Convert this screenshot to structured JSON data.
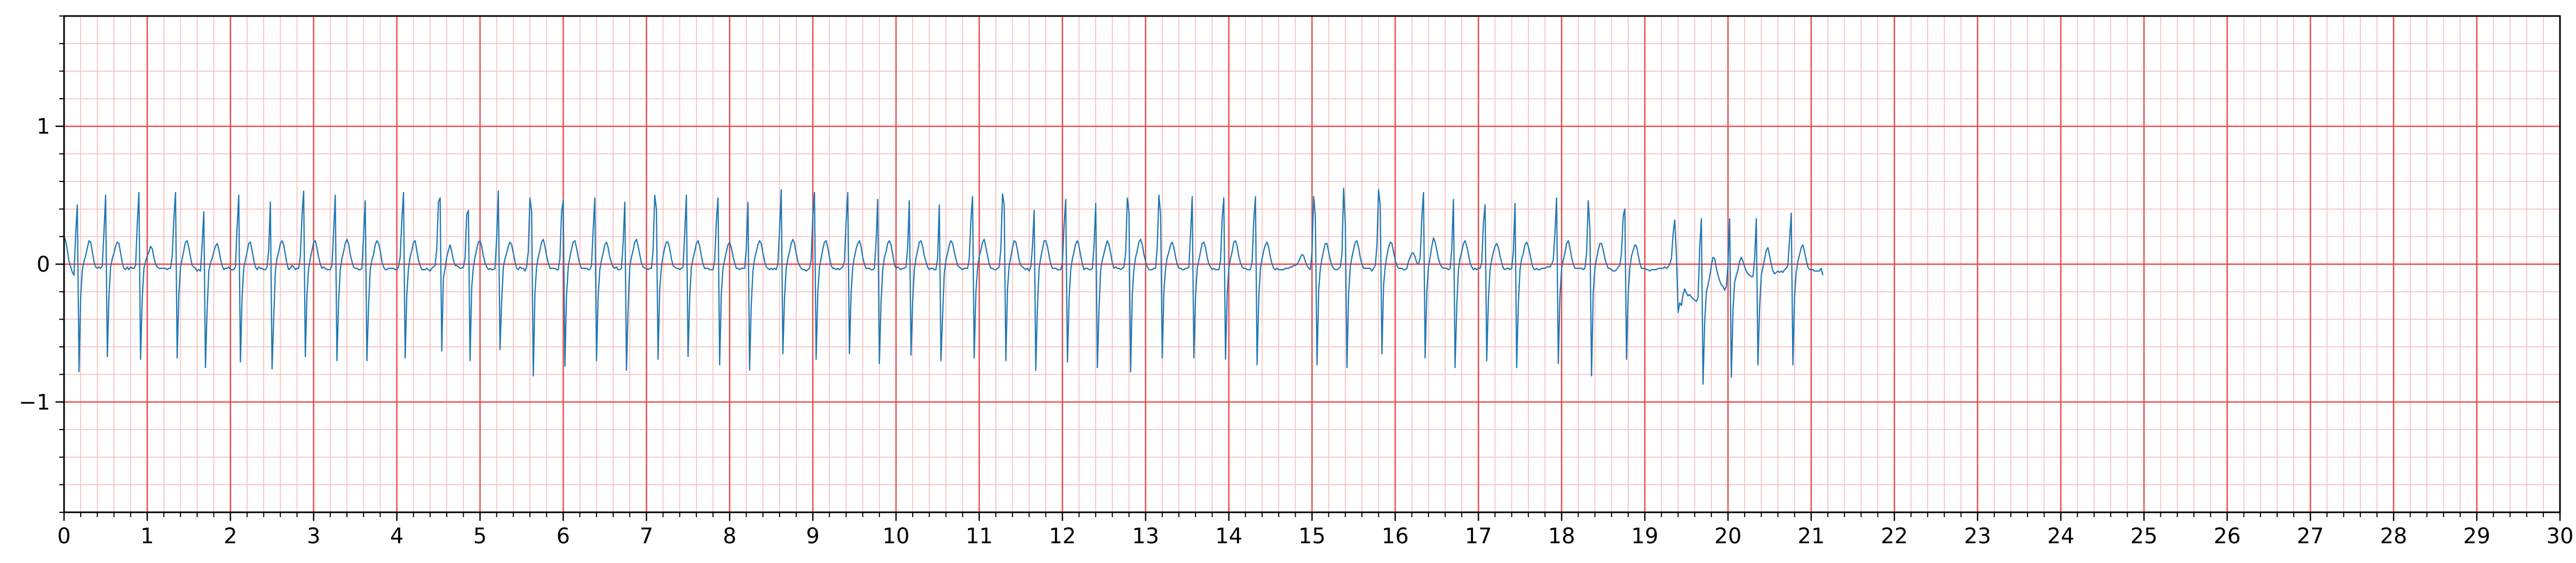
{
  "chart_data": {
    "type": "line",
    "title": "",
    "xlabel": "",
    "ylabel": "",
    "xlim": [
      0,
      30
    ],
    "ylim": [
      -1.8,
      1.8
    ],
    "x_ticks": [
      "0",
      "1",
      "2",
      "3",
      "4",
      "5",
      "6",
      "7",
      "8",
      "9",
      "10",
      "11",
      "12",
      "13",
      "14",
      "15",
      "16",
      "17",
      "18",
      "19",
      "20",
      "21",
      "22",
      "23",
      "24",
      "25",
      "26",
      "27",
      "28",
      "29",
      "30"
    ],
    "y_ticks": [
      {
        "value": 1,
        "label": "1"
      },
      {
        "value": 0,
        "label": "0"
      },
      {
        "value": -1,
        "label": "−1"
      }
    ],
    "grid": {
      "major": true,
      "minor": true,
      "x_major_step": 1,
      "x_minor_step": 0.2,
      "y_major_step": 1,
      "y_minor_step": 0.2
    },
    "colors": {
      "trace": "#1f77b4",
      "major_grid": "#ee4444",
      "minor_grid": "#f7bcbc",
      "axis": "#000000"
    },
    "series": [
      {
        "sampling": "uniform",
        "x_start": 0,
        "x_step": 0.02,
        "values": [
          0.2,
          0.17,
          0.1,
          0.02,
          -0.02,
          -0.06,
          -0.08,
          0.22,
          0.43,
          -0.78,
          -0.23,
          -0.04,
          0.02,
          0.06,
          0.12,
          0.17,
          0.16,
          0.09,
          0.02,
          -0.02,
          -0.03,
          -0.02,
          -0.03,
          -0.01,
          0.23,
          0.5,
          -0.67,
          -0.23,
          -0.02,
          0.04,
          0.08,
          0.13,
          0.16,
          0.15,
          0.08,
          0.01,
          -0.03,
          -0.04,
          -0.02,
          -0.04,
          -0.02,
          -0.03,
          -0.03,
          -0.01,
          0.29,
          0.52,
          -0.69,
          -0.25,
          -0.03,
          0.02,
          0.06,
          0.09,
          0.13,
          0.11,
          0.05,
          0.0,
          -0.02,
          -0.03,
          -0.03,
          -0.03,
          -0.03,
          -0.03,
          -0.04,
          -0.03,
          -0.03,
          0.06,
          0.33,
          0.52,
          -0.68,
          -0.22,
          -0.02,
          0.04,
          0.1,
          0.16,
          0.17,
          0.12,
          0.05,
          -0.01,
          -0.02,
          -0.03,
          -0.05,
          -0.04,
          -0.05,
          0.14,
          0.38,
          -0.75,
          -0.33,
          -0.05,
          0.01,
          0.04,
          0.09,
          0.13,
          0.15,
          0.11,
          0.04,
          -0.01,
          -0.04,
          -0.03,
          -0.03,
          -0.02,
          -0.04,
          -0.04,
          -0.04,
          -0.02,
          0.27,
          0.5,
          -0.71,
          -0.24,
          -0.03,
          0.03,
          0.09,
          0.15,
          0.16,
          0.1,
          0.03,
          -0.02,
          -0.04,
          -0.02,
          -0.03,
          -0.03,
          -0.04,
          -0.04,
          -0.02,
          0.1,
          0.45,
          -0.76,
          -0.39,
          -0.05,
          0.04,
          0.09,
          0.15,
          0.17,
          0.14,
          0.07,
          0.0,
          -0.04,
          -0.03,
          -0.01,
          -0.02,
          -0.04,
          -0.03,
          -0.03,
          0.05,
          0.35,
          0.53,
          -0.67,
          -0.22,
          -0.03,
          0.04,
          0.1,
          0.16,
          0.17,
          0.12,
          0.05,
          0.0,
          -0.03,
          -0.02,
          -0.03,
          -0.04,
          -0.04,
          -0.04,
          -0.01,
          0.23,
          0.5,
          -0.7,
          -0.27,
          -0.04,
          0.04,
          0.09,
          0.15,
          0.18,
          0.15,
          0.07,
          0.02,
          -0.02,
          -0.03,
          -0.03,
          -0.04,
          -0.04,
          -0.03,
          0.2,
          0.46,
          -0.7,
          -0.31,
          -0.04,
          0.03,
          0.07,
          0.14,
          0.17,
          0.15,
          0.1,
          0.02,
          -0.02,
          -0.04,
          -0.04,
          -0.03,
          -0.03,
          -0.03,
          -0.03,
          -0.04,
          -0.04,
          -0.02,
          0.05,
          0.32,
          0.52,
          -0.68,
          -0.22,
          -0.03,
          0.05,
          0.1,
          0.16,
          0.17,
          0.1,
          0.03,
          -0.01,
          -0.04,
          -0.04,
          -0.04,
          -0.03,
          -0.04,
          -0.05,
          -0.03,
          -0.02,
          -0.01,
          0.11,
          0.45,
          0.48,
          -0.63,
          -0.1,
          -0.03,
          0.05,
          0.1,
          0.14,
          0.09,
          0.03,
          -0.01,
          -0.01,
          -0.02,
          -0.03,
          -0.03,
          -0.02,
          0.04,
          0.36,
          0.39,
          -0.7,
          -0.17,
          -0.02,
          0.05,
          0.11,
          0.16,
          0.17,
          0.13,
          0.06,
          0.01,
          -0.02,
          -0.04,
          -0.03,
          -0.04,
          -0.04,
          -0.03,
          0.19,
          0.53,
          -0.62,
          -0.27,
          -0.02,
          0.04,
          0.08,
          0.13,
          0.16,
          0.14,
          0.08,
          0.02,
          -0.03,
          -0.04,
          -0.02,
          -0.03,
          -0.03,
          -0.05,
          -0.02,
          0.09,
          0.48,
          0.38,
          -0.81,
          -0.21,
          -0.02,
          0.05,
          0.1,
          0.16,
          0.18,
          0.13,
          0.06,
          0.01,
          -0.03,
          -0.03,
          -0.03,
          -0.03,
          -0.04,
          -0.04,
          0.04,
          0.38,
          0.46,
          -0.74,
          -0.23,
          -0.02,
          0.05,
          0.11,
          0.16,
          0.17,
          0.12,
          0.05,
          0.0,
          -0.03,
          -0.03,
          -0.03,
          -0.03,
          -0.04,
          -0.04,
          -0.01,
          0.25,
          0.48,
          -0.7,
          -0.23,
          -0.04,
          0.03,
          0.08,
          0.14,
          0.16,
          0.12,
          0.05,
          0.01,
          -0.02,
          -0.03,
          -0.02,
          -0.04,
          -0.04,
          -0.03,
          0.15,
          0.45,
          -0.77,
          -0.31,
          -0.02,
          0.05,
          0.1,
          0.16,
          0.18,
          0.13,
          0.07,
          0.01,
          -0.02,
          -0.03,
          -0.03,
          -0.04,
          -0.03,
          -0.03,
          0.1,
          0.5,
          0.4,
          -0.69,
          -0.18,
          -0.02,
          0.06,
          0.12,
          0.16,
          0.16,
          0.11,
          0.04,
          -0.01,
          -0.02,
          -0.03,
          -0.03,
          -0.04,
          -0.03,
          -0.02,
          0.22,
          0.5,
          -0.67,
          -0.24,
          -0.02,
          0.04,
          0.09,
          0.15,
          0.17,
          0.13,
          0.06,
          0.0,
          -0.03,
          -0.03,
          -0.03,
          -0.04,
          -0.04,
          -0.04,
          0.02,
          0.31,
          0.48,
          -0.73,
          -0.22,
          -0.03,
          0.03,
          0.09,
          0.14,
          0.16,
          0.12,
          0.06,
          0.01,
          -0.03,
          -0.03,
          -0.04,
          -0.03,
          -0.03,
          -0.03,
          0.11,
          0.45,
          -0.77,
          -0.3,
          -0.05,
          0.04,
          0.09,
          0.14,
          0.17,
          0.15,
          0.08,
          0.02,
          -0.02,
          -0.03,
          -0.04,
          -0.03,
          -0.04,
          -0.03,
          -0.04,
          0.0,
          0.24,
          0.54,
          -0.65,
          -0.24,
          -0.03,
          0.04,
          0.09,
          0.15,
          0.18,
          0.15,
          0.08,
          0.02,
          -0.01,
          -0.03,
          -0.04,
          -0.04,
          -0.05,
          -0.04,
          -0.03,
          0.03,
          0.35,
          0.52,
          -0.69,
          -0.2,
          -0.02,
          0.04,
          0.11,
          0.16,
          0.17,
          0.12,
          0.05,
          -0.01,
          -0.03,
          -0.03,
          -0.04,
          -0.03,
          -0.04,
          -0.03,
          -0.02,
          0.02,
          0.31,
          0.52,
          -0.65,
          -0.21,
          -0.02,
          0.05,
          0.11,
          0.15,
          0.17,
          0.13,
          0.05,
          0.0,
          -0.03,
          -0.03,
          -0.03,
          -0.04,
          -0.04,
          -0.03,
          0.16,
          0.47,
          -0.72,
          -0.28,
          -0.04,
          0.05,
          0.09,
          0.15,
          0.17,
          0.14,
          0.07,
          0.0,
          -0.03,
          -0.02,
          -0.03,
          -0.04,
          -0.03,
          -0.03,
          -0.02,
          0.12,
          0.46,
          -0.66,
          -0.26,
          -0.04,
          0.04,
          0.1,
          0.16,
          0.17,
          0.13,
          0.06,
          0.02,
          -0.02,
          -0.04,
          -0.03,
          -0.03,
          -0.04,
          -0.04,
          0.04,
          0.43,
          -0.7,
          -0.37,
          -0.07,
          0.03,
          0.08,
          0.14,
          0.17,
          0.15,
          0.09,
          0.04,
          -0.01,
          -0.02,
          -0.03,
          -0.04,
          -0.03,
          -0.03,
          -0.03,
          0.04,
          0.32,
          0.49,
          -0.68,
          -0.2,
          -0.03,
          0.06,
          0.1,
          0.16,
          0.18,
          0.12,
          0.06,
          0.0,
          -0.03,
          -0.03,
          -0.04,
          -0.04,
          -0.03,
          -0.02,
          0.11,
          0.51,
          0.43,
          -0.7,
          -0.18,
          -0.01,
          0.05,
          0.12,
          0.17,
          0.16,
          0.1,
          0.03,
          -0.01,
          -0.02,
          -0.03,
          -0.04,
          -0.03,
          -0.05,
          -0.02,
          0.13,
          0.39,
          -0.77,
          -0.31,
          -0.03,
          0.05,
          0.11,
          0.17,
          0.17,
          0.13,
          0.06,
          0.0,
          -0.03,
          -0.03,
          -0.03,
          -0.04,
          -0.04,
          -0.04,
          0.01,
          0.28,
          0.47,
          -0.71,
          -0.25,
          -0.04,
          0.04,
          0.09,
          0.15,
          0.17,
          0.13,
          0.06,
          0.0,
          -0.04,
          -0.03,
          -0.03,
          -0.04,
          -0.04,
          -0.03,
          0.13,
          0.44,
          -0.75,
          -0.32,
          -0.04,
          0.03,
          0.08,
          0.13,
          0.17,
          0.14,
          0.08,
          0.01,
          -0.03,
          -0.02,
          -0.03,
          -0.03,
          -0.04,
          -0.03,
          -0.02,
          0.08,
          0.48,
          0.38,
          -0.78,
          -0.21,
          -0.03,
          0.05,
          0.1,
          0.16,
          0.18,
          0.14,
          0.07,
          0.02,
          -0.02,
          -0.04,
          -0.04,
          -0.04,
          -0.03,
          -0.03,
          0.13,
          0.5,
          0.36,
          -0.68,
          -0.19,
          -0.03,
          0.05,
          0.09,
          0.14,
          0.16,
          0.12,
          0.05,
          0.0,
          -0.03,
          -0.03,
          -0.04,
          -0.04,
          -0.03,
          -0.03,
          -0.02,
          0.22,
          0.49,
          -0.68,
          -0.24,
          -0.03,
          0.03,
          0.09,
          0.15,
          0.16,
          0.12,
          0.05,
          0.0,
          -0.02,
          -0.04,
          -0.03,
          -0.04,
          -0.04,
          -0.04,
          0.02,
          0.33,
          0.48,
          -0.69,
          -0.22,
          -0.03,
          0.04,
          0.09,
          0.16,
          0.17,
          0.13,
          0.06,
          0.01,
          -0.02,
          -0.03,
          -0.03,
          -0.04,
          -0.04,
          -0.04,
          0.02,
          0.32,
          0.49,
          -0.73,
          -0.24,
          -0.03,
          0.04,
          0.1,
          0.14,
          0.16,
          0.12,
          0.05,
          0.0,
          -0.03,
          -0.04,
          -0.03,
          -0.04,
          -0.04,
          -0.04,
          -0.04,
          -0.03,
          -0.03,
          -0.03,
          -0.02,
          -0.02,
          -0.01,
          -0.01,
          0.0,
          0.02,
          0.05,
          0.07,
          0.06,
          0.02,
          -0.01,
          -0.03,
          -0.04,
          0.09,
          0.49,
          0.35,
          -0.73,
          -0.19,
          -0.03,
          0.04,
          0.1,
          0.15,
          0.15,
          0.09,
          0.03,
          -0.01,
          -0.03,
          -0.04,
          -0.04,
          -0.03,
          -0.02,
          0.07,
          0.55,
          0.29,
          -0.75,
          -0.21,
          -0.02,
          0.05,
          0.11,
          0.16,
          0.17,
          0.12,
          0.05,
          0.0,
          -0.03,
          -0.03,
          -0.03,
          -0.03,
          -0.03,
          -0.05,
          -0.03,
          -0.01,
          0.13,
          0.54,
          0.43,
          -0.65,
          -0.15,
          -0.02,
          0.06,
          0.12,
          0.16,
          0.15,
          0.09,
          0.03,
          -0.01,
          -0.03,
          -0.03,
          -0.03,
          -0.04,
          -0.04,
          -0.03,
          0.02,
          0.05,
          0.08,
          0.08,
          0.05,
          0.01,
          0.0,
          0.05,
          0.34,
          0.52,
          -0.68,
          -0.2,
          -0.02,
          0.05,
          0.13,
          0.19,
          0.16,
          0.1,
          0.04,
          0.0,
          -0.02,
          -0.03,
          -0.03,
          -0.03,
          -0.04,
          -0.03,
          0.11,
          0.47,
          -0.75,
          -0.3,
          -0.04,
          0.04,
          0.09,
          0.15,
          0.17,
          0.13,
          0.07,
          0.01,
          -0.02,
          -0.04,
          -0.03,
          -0.04,
          -0.03,
          -0.03,
          0.01,
          0.3,
          0.43,
          -0.7,
          -0.26,
          -0.04,
          0.03,
          0.09,
          0.13,
          0.15,
          0.12,
          0.06,
          0.01,
          -0.03,
          -0.04,
          -0.03,
          -0.03,
          -0.04,
          -0.03,
          0.09,
          0.44,
          -0.75,
          -0.29,
          -0.04,
          0.04,
          0.08,
          0.14,
          0.16,
          0.13,
          0.07,
          0.01,
          -0.03,
          -0.04,
          -0.03,
          -0.04,
          -0.04,
          -0.03,
          -0.03,
          -0.03,
          -0.02,
          -0.02,
          -0.02,
          0.0,
          0.03,
          0.23,
          0.48,
          -0.72,
          -0.23,
          -0.03,
          0.03,
          0.08,
          0.15,
          0.17,
          0.12,
          0.05,
          0.0,
          -0.03,
          -0.03,
          -0.03,
          -0.03,
          -0.03,
          -0.04,
          -0.03,
          0.08,
          0.46,
          0.26,
          -0.81,
          -0.21,
          -0.03,
          0.04,
          0.1,
          0.15,
          0.15,
          0.1,
          0.04,
          0.0,
          -0.03,
          -0.03,
          -0.04,
          -0.05,
          -0.05,
          -0.04,
          -0.02,
          -0.01,
          0.08,
          0.35,
          0.4,
          -0.69,
          -0.22,
          -0.03,
          0.06,
          0.1,
          0.14,
          0.13,
          0.07,
          0.01,
          -0.03,
          -0.03,
          -0.03,
          -0.04,
          -0.04,
          -0.05,
          -0.04,
          -0.04,
          -0.04,
          -0.04,
          -0.03,
          -0.03,
          -0.03,
          -0.03,
          -0.02,
          -0.03,
          -0.02,
          0.0,
          0.04,
          0.22,
          0.32,
          0.07,
          -0.35,
          -0.28,
          -0.3,
          -0.22,
          -0.18,
          -0.21,
          -0.23,
          -0.22,
          -0.24,
          -0.25,
          -0.26,
          -0.27,
          -0.24,
          0.12,
          0.33,
          -0.87,
          -0.42,
          -0.2,
          -0.15,
          -0.09,
          -0.01,
          0.05,
          0.04,
          -0.03,
          -0.08,
          -0.12,
          -0.15,
          -0.16,
          -0.19,
          -0.16,
          0.0,
          0.33,
          -0.82,
          -0.33,
          -0.13,
          -0.08,
          -0.04,
          0.02,
          0.05,
          0.02,
          -0.02,
          -0.05,
          -0.07,
          -0.08,
          -0.09,
          -0.09,
          0.04,
          0.33,
          -0.73,
          -0.31,
          -0.08,
          -0.02,
          0.04,
          0.1,
          0.12,
          0.06,
          0.0,
          -0.05,
          -0.07,
          -0.06,
          -0.05,
          -0.06,
          -0.05,
          -0.06,
          -0.04,
          -0.03,
          -0.01,
          0.18,
          0.37,
          -0.73,
          -0.24,
          -0.06,
          0.02,
          0.07,
          0.12,
          0.14,
          0.09,
          0.03,
          -0.02,
          -0.04,
          -0.04,
          -0.04,
          -0.05,
          -0.05,
          -0.05,
          -0.05,
          -0.03,
          -0.08
        ]
      }
    ]
  }
}
